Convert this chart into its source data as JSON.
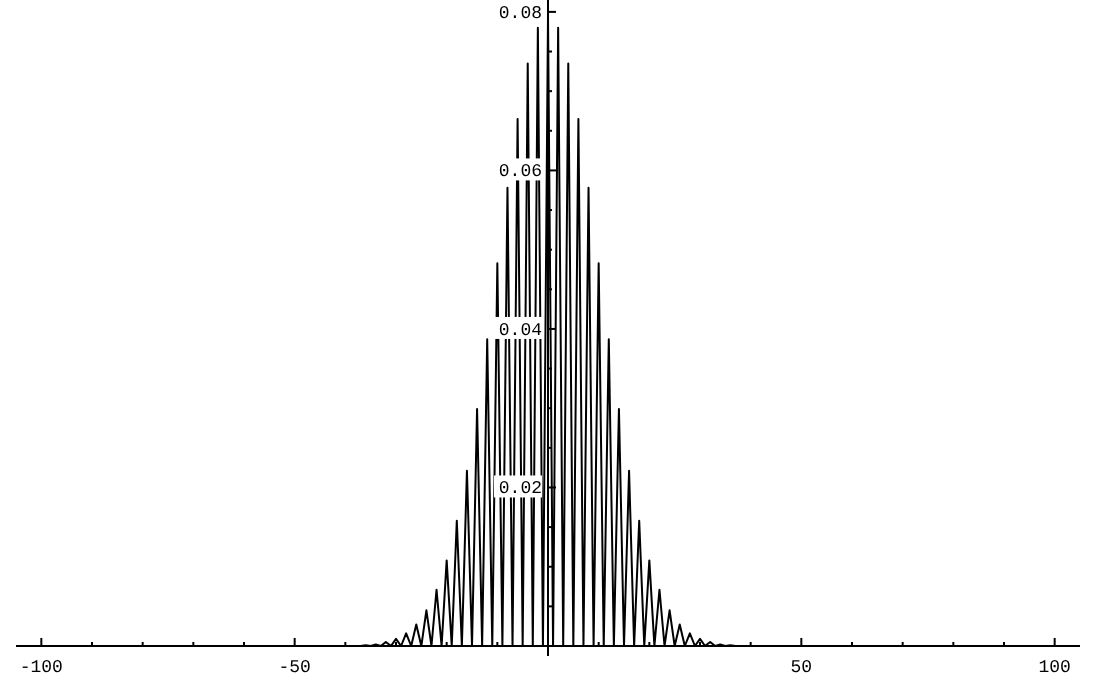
{
  "chart_data": {
    "type": "line",
    "x": [
      -40,
      -39,
      -38,
      -37,
      -36,
      -35,
      -34,
      -33,
      -32,
      -31,
      -30,
      -29,
      -28,
      -27,
      -26,
      -25,
      -24,
      -23,
      -22,
      -21,
      -20,
      -19,
      -18,
      -17,
      -16,
      -15,
      -14,
      -13,
      -12,
      -11,
      -10,
      -9,
      -8,
      -7,
      -6,
      -5,
      -4,
      -3,
      -2,
      -1,
      0,
      1,
      2,
      3,
      4,
      5,
      6,
      7,
      8,
      9,
      10,
      11,
      12,
      13,
      14,
      15,
      16,
      17,
      18,
      19,
      20,
      21,
      22,
      23,
      24,
      25,
      26,
      27,
      28,
      29,
      30,
      31,
      32,
      33,
      34,
      35,
      36,
      37,
      38,
      39,
      40
    ],
    "series": [
      {
        "color": "#000000",
        "values": [
          0,
          0,
          0,
          0,
          0.0001,
          0,
          0.0002,
          0,
          0.0005,
          0,
          0.0009,
          0,
          0.0016,
          0,
          0.0027,
          0,
          0.0045,
          0,
          0.0071,
          0,
          0.0108,
          0,
          0.0158,
          0,
          0.0221,
          0,
          0.0299,
          0,
          0.0387,
          0,
          0.0483,
          0,
          0.0578,
          0,
          0.0665,
          0,
          0.0735,
          0,
          0.078,
          0,
          0.0796,
          0,
          0.078,
          0,
          0.0735,
          0,
          0.0665,
          0,
          0.0578,
          0,
          0.0483,
          0,
          0.0387,
          0,
          0.0299,
          0,
          0.0221,
          0,
          0.0158,
          0,
          0.0108,
          0,
          0.0071,
          0,
          0.0045,
          0,
          0.0027,
          0,
          0.0016,
          0,
          0.0009,
          0,
          0.0005,
          0,
          0.0002,
          0,
          0.0001,
          0,
          0,
          0,
          0
        ]
      }
    ],
    "xlim": [
      -105,
      105
    ],
    "ylim": [
      0,
      0.0815
    ],
    "xticks": [
      {
        "value": -100,
        "label": "-100"
      },
      {
        "value": -90,
        "label": null
      },
      {
        "value": -80,
        "label": null
      },
      {
        "value": -70,
        "label": null
      },
      {
        "value": -60,
        "label": null
      },
      {
        "value": -50,
        "label": "-50"
      },
      {
        "value": -40,
        "label": null
      },
      {
        "value": -30,
        "label": null
      },
      {
        "value": -20,
        "label": null
      },
      {
        "value": -10,
        "label": null
      },
      {
        "value": 0,
        "label": null
      },
      {
        "value": 10,
        "label": null
      },
      {
        "value": 20,
        "label": null
      },
      {
        "value": 30,
        "label": null
      },
      {
        "value": 40,
        "label": null
      },
      {
        "value": 50,
        "label": "50"
      },
      {
        "value": 60,
        "label": null
      },
      {
        "value": 70,
        "label": null
      },
      {
        "value": 80,
        "label": null
      },
      {
        "value": 90,
        "label": null
      },
      {
        "value": 100,
        "label": "100"
      }
    ],
    "yticks": [
      {
        "value": 0.005,
        "label": null
      },
      {
        "value": 0.01,
        "label": null
      },
      {
        "value": 0.015,
        "label": null
      },
      {
        "value": 0.02,
        "label": "0.02"
      },
      {
        "value": 0.025,
        "label": null
      },
      {
        "value": 0.03,
        "label": null
      },
      {
        "value": 0.035,
        "label": null
      },
      {
        "value": 0.04,
        "label": "0.04"
      },
      {
        "value": 0.045,
        "label": null
      },
      {
        "value": 0.05,
        "label": null
      },
      {
        "value": 0.055,
        "label": null
      },
      {
        "value": 0.06,
        "label": "0.06"
      },
      {
        "value": 0.065,
        "label": null
      },
      {
        "value": 0.07,
        "label": null
      },
      {
        "value": 0.075,
        "label": null
      },
      {
        "value": 0.08,
        "label": "0.08"
      }
    ],
    "grid": false,
    "marker": "none",
    "line_style": "solid"
  }
}
